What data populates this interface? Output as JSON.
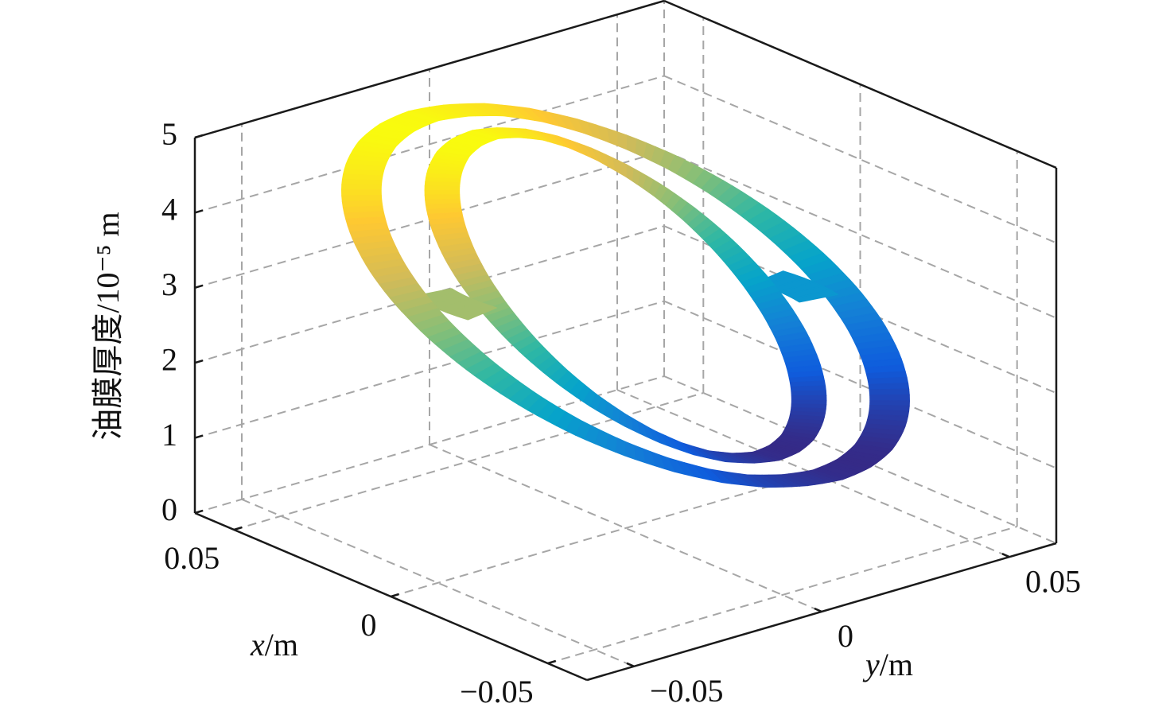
{
  "chart_data": {
    "type": "ring3d",
    "xlabel": "x/m",
    "ylabel": "y/m",
    "zlabel": "油膜厚度/10⁻⁵ m",
    "xlim": [
      -0.0625,
      0.0625
    ],
    "ylim": [
      -0.0625,
      0.0625
    ],
    "zlim": [
      0,
      5
    ],
    "xticks": [
      {
        "value": -0.05,
        "label": "−0.05"
      },
      0,
      0.05
    ],
    "yticks": [
      {
        "value": -0.05,
        "label": "−0.05"
      },
      0,
      0.05
    ],
    "zticks": [
      0,
      1,
      2,
      3,
      4,
      5
    ],
    "grid": true,
    "colormap": "parula",
    "theta": [
      0,
      10,
      20,
      30,
      40,
      50,
      60,
      70,
      80,
      90,
      100,
      110,
      120,
      130,
      140,
      150,
      160,
      170,
      180,
      190,
      200,
      210,
      220,
      230,
      240,
      250,
      260,
      270,
      280,
      290,
      300,
      310,
      320,
      330,
      340,
      350
    ],
    "series": [
      {
        "radius": [
          0.05,
          0.058
        ],
        "values": [
          4.6,
          4.49,
          4.33,
          4.13,
          3.9,
          3.65,
          3.38,
          3.1,
          2.82,
          2.55,
          2.3,
          2.07,
          1.87,
          1.71,
          1.6,
          1.52,
          1.5,
          1.52,
          1.6,
          1.71,
          1.87,
          2.07,
          2.3,
          2.55,
          2.82,
          3.1,
          3.38,
          3.65,
          3.9,
          4.13,
          4.33,
          4.49,
          4.6,
          4.68,
          4.7,
          4.68
        ]
      },
      {
        "radius": [
          0.034,
          0.041
        ],
        "values": [
          4.6,
          4.49,
          4.33,
          4.13,
          3.9,
          3.65,
          3.38,
          3.1,
          2.82,
          2.55,
          2.3,
          2.07,
          1.87,
          1.71,
          1.6,
          1.52,
          1.5,
          1.52,
          1.6,
          1.71,
          1.87,
          2.07,
          2.3,
          2.55,
          2.82,
          3.1,
          3.38,
          3.65,
          3.9,
          4.13,
          4.33,
          4.49,
          4.6,
          4.68,
          4.7,
          4.68
        ]
      }
    ],
    "pads": [
      {
        "theta": [
          80,
          100
        ],
        "value": 2.55
      },
      {
        "theta": [
          260,
          280
        ],
        "value": 3.65
      }
    ]
  }
}
